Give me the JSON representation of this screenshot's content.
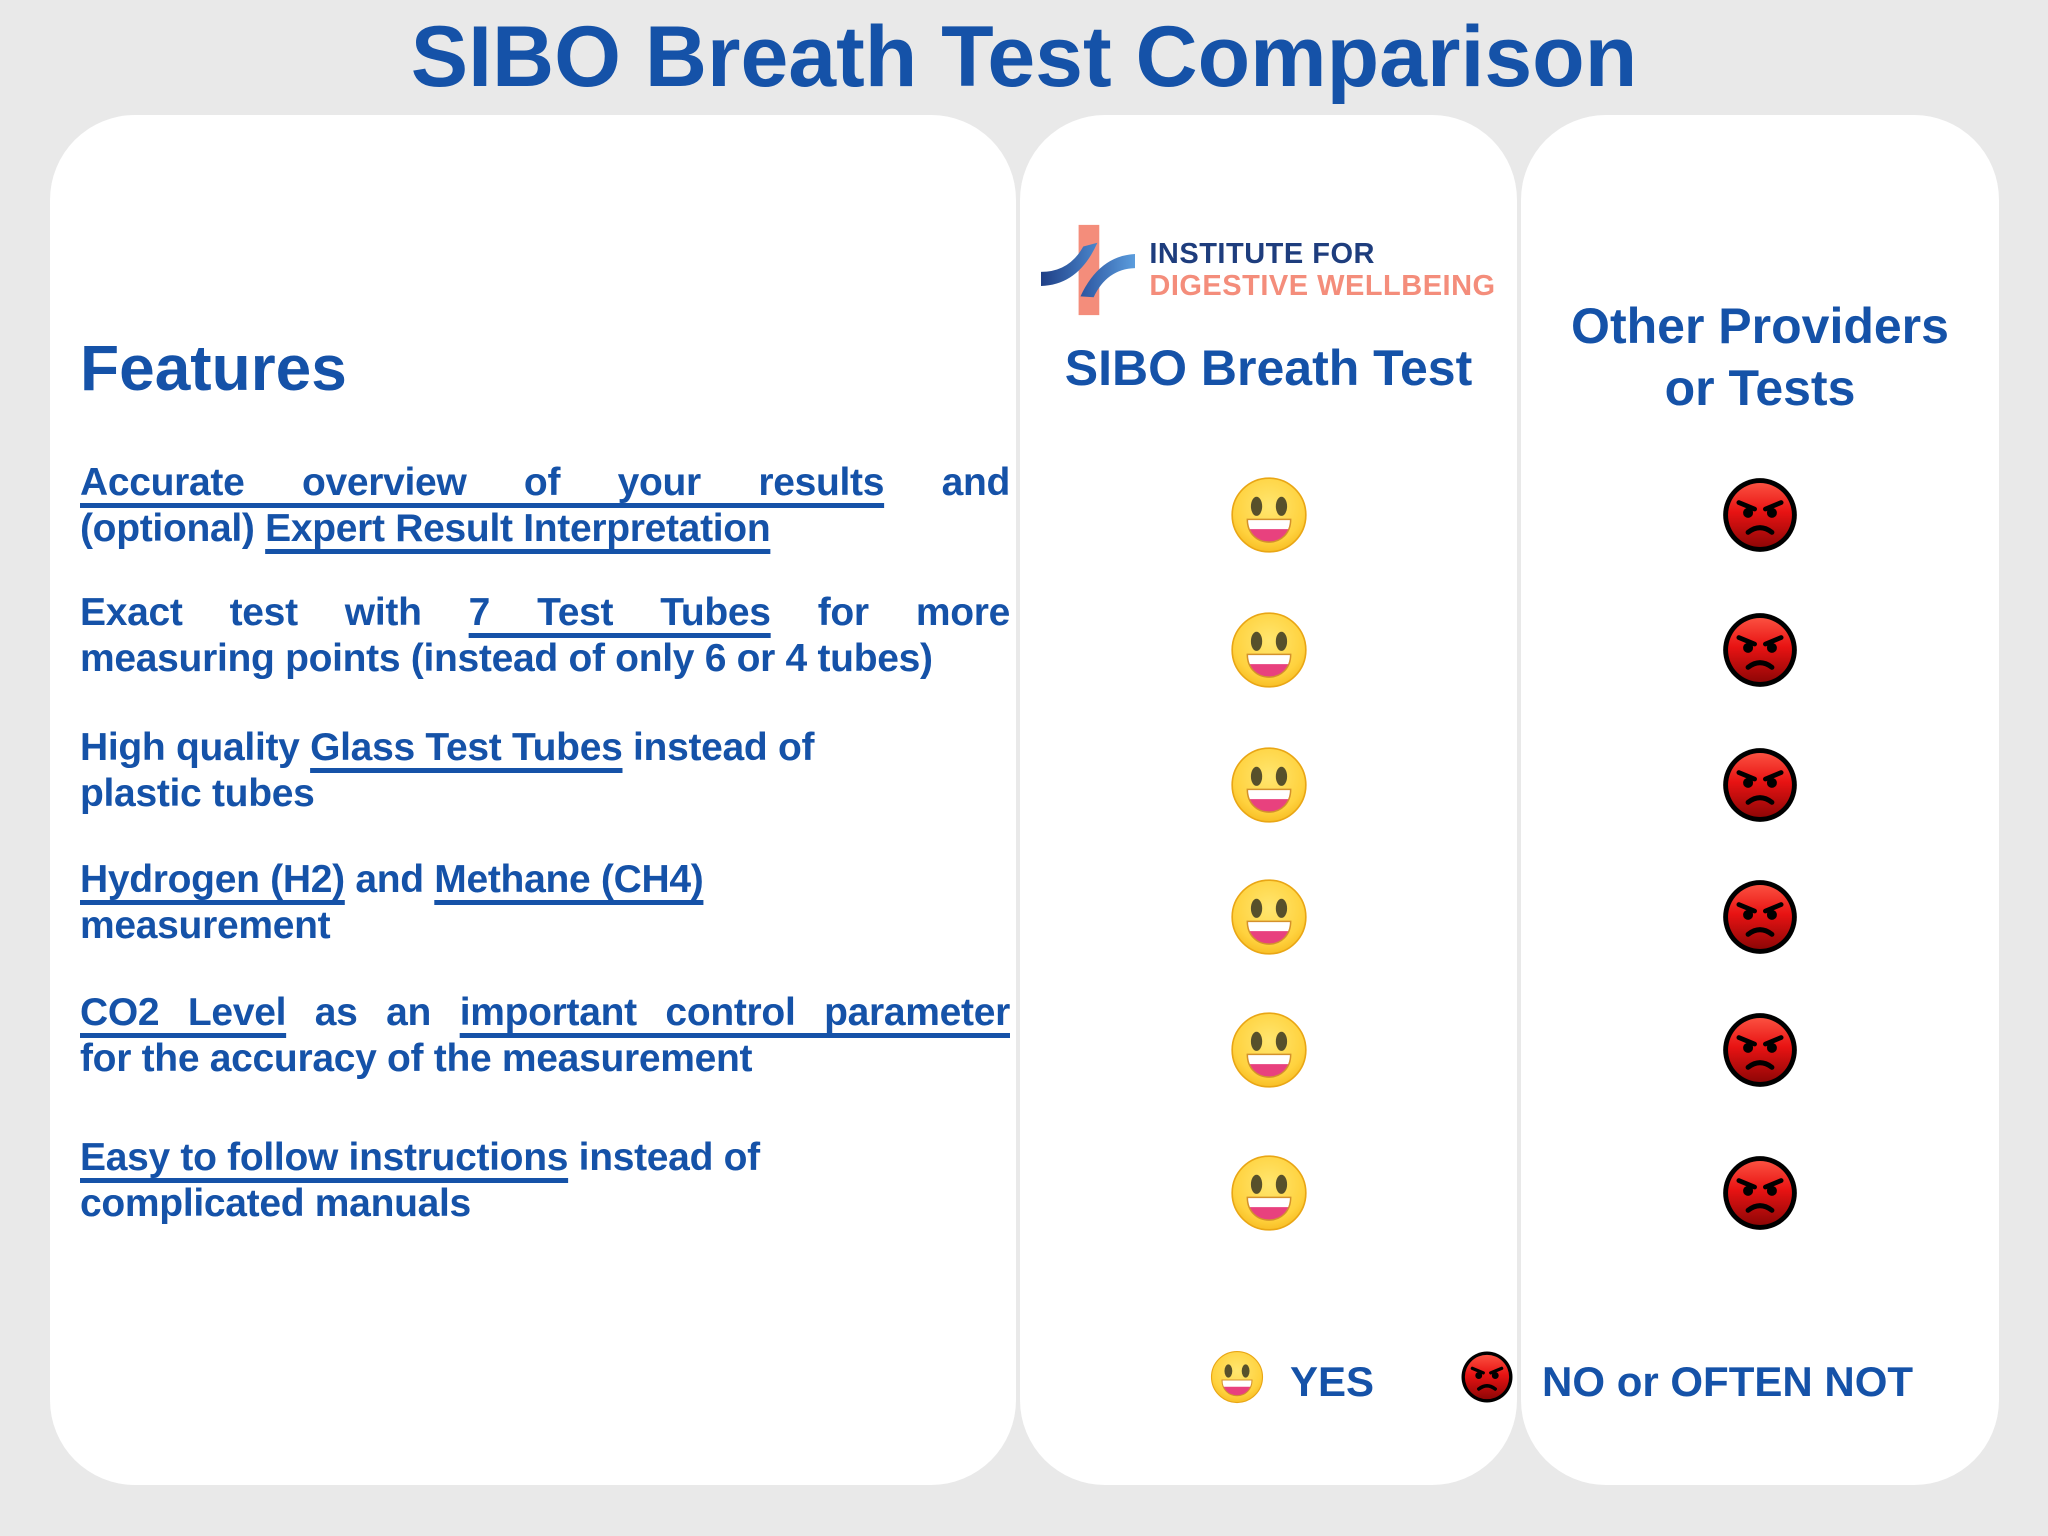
{
  "title": "SIBO Breath Test Comparison",
  "colors": {
    "accent_blue": "#1552a8",
    "logo_navy": "#1e3d7d",
    "logo_salmon": "#f48d7b",
    "yes_emoji_yellow": "#ffd23e",
    "no_emoji_red": "#e81313"
  },
  "features_card": {
    "heading": "Features",
    "rows": [
      {
        "lines": [
          {
            "justify": true,
            "segments": [
              {
                "text": "Accurate overview of your results",
                "underline": true
              },
              {
                "text": " and",
                "underline": false
              }
            ]
          },
          {
            "justify": false,
            "segments": [
              {
                "text": "(optional) ",
                "underline": false
              },
              {
                "text": "Expert Result Interpretation",
                "underline": true
              }
            ]
          }
        ]
      },
      {
        "lines": [
          {
            "justify": true,
            "segments": [
              {
                "text": "Exact test with ",
                "underline": false
              },
              {
                "text": "7 Test Tubes",
                "underline": true
              },
              {
                "text": " for more",
                "underline": false
              }
            ]
          },
          {
            "justify": false,
            "segments": [
              {
                "text": "measuring points (instead of only 6 or 4 tubes)",
                "underline": false
              }
            ]
          }
        ]
      },
      {
        "lines": [
          {
            "justify": false,
            "segments": [
              {
                "text": "High quality ",
                "underline": false
              },
              {
                "text": "Glass Test Tubes",
                "underline": true
              },
              {
                "text": " instead of",
                "underline": false
              }
            ]
          },
          {
            "justify": false,
            "segments": [
              {
                "text": "plastic tubes",
                "underline": false
              }
            ]
          }
        ]
      },
      {
        "lines": [
          {
            "justify": false,
            "segments": [
              {
                "text": "Hydrogen (H2)",
                "underline": true
              },
              {
                "text": " and ",
                "underline": false
              },
              {
                "text": "Methane (CH4)",
                "underline": true
              }
            ]
          },
          {
            "justify": false,
            "segments": [
              {
                "text": "measurement",
                "underline": false
              }
            ]
          }
        ]
      },
      {
        "lines": [
          {
            "justify": true,
            "segments": [
              {
                "text": "CO2 Level",
                "underline": true
              },
              {
                "text": " as an ",
                "underline": false
              },
              {
                "text": "important control parameter",
                "underline": true
              }
            ]
          },
          {
            "justify": false,
            "segments": [
              {
                "text": "for the accuracy of the measurement",
                "underline": false
              }
            ]
          }
        ]
      },
      {
        "lines": [
          {
            "justify": false,
            "segments": [
              {
                "text": "Easy to follow instructions",
                "underline": true
              },
              {
                "text": " instead of",
                "underline": false
              }
            ]
          },
          {
            "justify": false,
            "segments": [
              {
                "text": "complicated manuals",
                "underline": false
              }
            ]
          }
        ]
      }
    ]
  },
  "sibo_card": {
    "logo_line1": "INSTITUTE FOR",
    "logo_line2": "DIGESTIVE WELLBEING",
    "header": "SIBO Breath Test",
    "ratings": [
      "yes",
      "yes",
      "yes",
      "yes",
      "yes",
      "yes"
    ]
  },
  "others_card": {
    "header_line1": "Other Providers",
    "header_line2": "or Tests",
    "ratings": [
      "no",
      "no",
      "no",
      "no",
      "no",
      "no"
    ]
  },
  "legend": {
    "yes_label": "YES",
    "no_label": "NO or OFTEN NOT"
  }
}
